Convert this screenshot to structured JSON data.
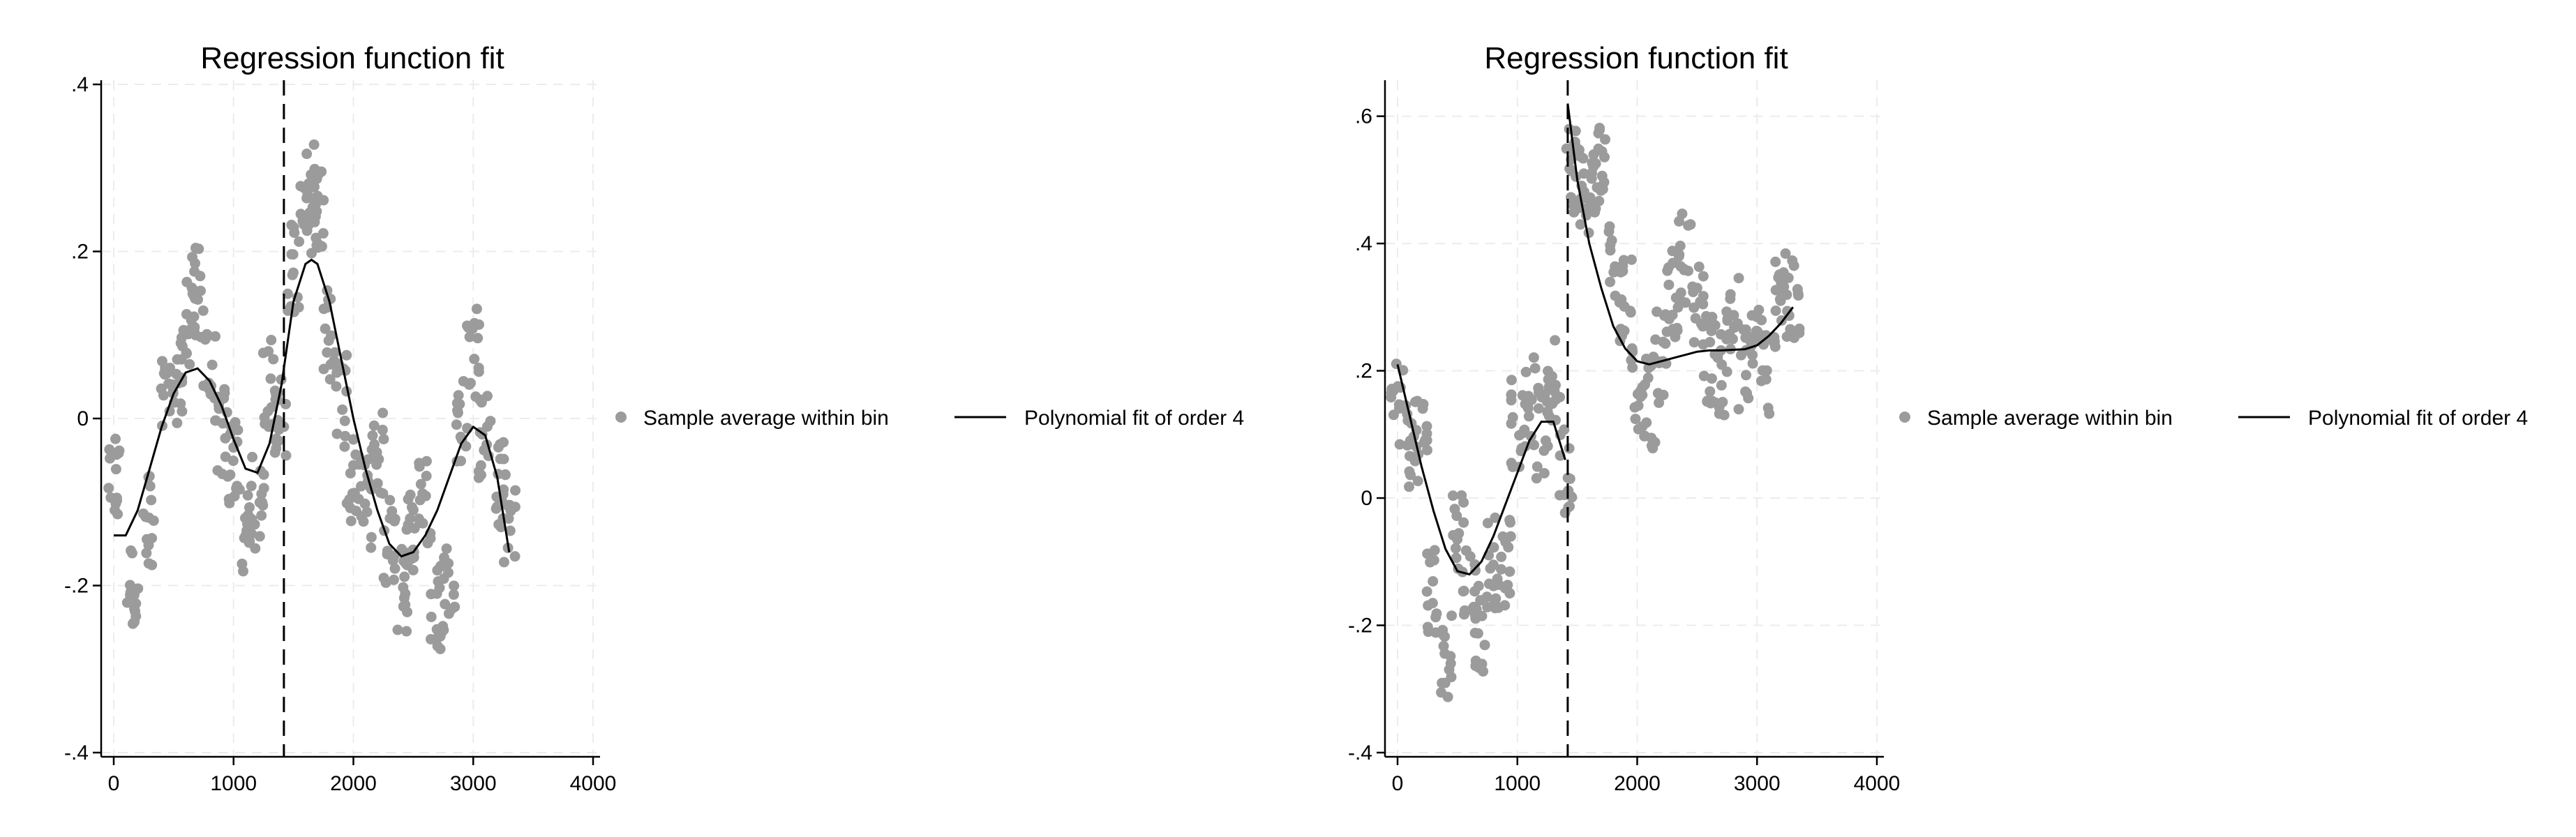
{
  "colors": {
    "points": "#9b9b9b",
    "line": "#000000",
    "grid": "#ececec",
    "background": "#ffffff"
  },
  "chart_data": [
    {
      "type": "scatter",
      "title": "Regression function fit",
      "xlabel": "",
      "ylabel": "",
      "xlim": [
        0,
        4000
      ],
      "ylim": [
        -0.4,
        0.4
      ],
      "x_ticks": [
        0,
        1000,
        2000,
        3000,
        4000
      ],
      "x_tick_labels": [
        "0",
        "1000",
        "2000",
        "3000",
        "4000"
      ],
      "y_ticks": [
        -0.4,
        -0.2,
        0,
        0.2,
        0.4
      ],
      "y_tick_labels": [
        "-.4",
        "-.2",
        "0",
        ".2",
        ".4"
      ],
      "grid": true,
      "cutoff_x": 1420,
      "legend": {
        "placement": "right",
        "entries": [
          "Sample average within bin",
          "Polynomial fit of order 4"
        ]
      },
      "series": [
        {
          "name": "Sample average within bin",
          "kind": "points",
          "x": [
            0,
            150,
            300,
            450,
            550,
            650,
            700,
            800,
            900,
            1000,
            1100,
            1200,
            1300,
            1400,
            1500,
            1600,
            1650,
            1700,
            1800,
            1900,
            2000,
            2100,
            2200,
            2300,
            2400,
            2500,
            2600,
            2700,
            2800,
            2900,
            3000,
            3100,
            3200,
            3300
          ],
          "y": [
            -0.08,
            -0.2,
            -0.12,
            0.02,
            0.05,
            0.12,
            0.15,
            0.05,
            -0.02,
            -0.05,
            -0.14,
            -0.1,
            0.04,
            0.0,
            0.18,
            0.24,
            0.28,
            0.26,
            0.1,
            0.02,
            -0.08,
            -0.1,
            -0.04,
            -0.15,
            -0.2,
            -0.13,
            -0.1,
            -0.22,
            -0.2,
            0.0,
            0.08,
            -0.02,
            -0.08,
            -0.12
          ]
        },
        {
          "name": "Polynomial fit of order 4",
          "kind": "line",
          "segments": [
            {
              "x": [
                0,
                100,
                200,
                300,
                400,
                500,
                600,
                700,
                800,
                900,
                1000,
                1100,
                1200,
                1300,
                1400
              ],
              "y": [
                -0.14,
                -0.14,
                -0.11,
                -0.06,
                -0.01,
                0.03,
                0.055,
                0.06,
                0.045,
                0.015,
                -0.025,
                -0.06,
                -0.065,
                -0.03,
                0.04
              ]
            },
            {
              "x": [
                1400,
                1500,
                1600,
                1650,
                1700,
                1800,
                1900,
                2000,
                2100,
                2200,
                2300,
                2400,
                2500,
                2600,
                2700,
                2800,
                2900,
                3000,
                3100,
                3200,
                3300
              ],
              "y": [
                0.04,
                0.14,
                0.185,
                0.19,
                0.185,
                0.14,
                0.07,
                0.0,
                -0.06,
                -0.11,
                -0.15,
                -0.165,
                -0.16,
                -0.14,
                -0.11,
                -0.07,
                -0.03,
                -0.01,
                -0.02,
                -0.07,
                -0.16
              ]
            }
          ]
        }
      ]
    },
    {
      "type": "scatter",
      "title": "Regression function fit",
      "xlabel": "",
      "ylabel": "",
      "xlim": [
        0,
        4000
      ],
      "ylim": [
        -0.4,
        0.65
      ],
      "x_ticks": [
        0,
        1000,
        2000,
        3000,
        4000
      ],
      "x_tick_labels": [
        "0",
        "1000",
        "2000",
        "3000",
        "4000"
      ],
      "y_ticks": [
        -0.4,
        -0.2,
        0,
        0.2,
        0.4,
        0.6
      ],
      "y_tick_labels": [
        "-.4",
        "-.2",
        "0",
        ".2",
        ".4",
        ".6"
      ],
      "grid": true,
      "cutoff_x": 1420,
      "legend": {
        "placement": "right",
        "entries": [
          "Sample average within bin",
          "Polynomial fit of order 4"
        ]
      },
      "series": [
        {
          "name": "Sample average within bin",
          "kind": "points",
          "x": [
            0,
            100,
            200,
            300,
            400,
            500,
            600,
            700,
            800,
            900,
            1000,
            1100,
            1200,
            1300,
            1400,
            1450,
            1500,
            1600,
            1700,
            1800,
            1900,
            2000,
            2100,
            2200,
            2300,
            2400,
            2500,
            2600,
            2700,
            2800,
            2900,
            3000,
            3100,
            3200,
            3300
          ],
          "y": [
            0.15,
            0.08,
            0.1,
            -0.15,
            -0.25,
            -0.05,
            -0.15,
            -0.2,
            -0.1,
            -0.1,
            0.12,
            0.15,
            0.1,
            0.18,
            0.05,
            0.52,
            0.5,
            0.48,
            0.52,
            0.38,
            0.32,
            0.18,
            0.15,
            0.22,
            0.32,
            0.38,
            0.3,
            0.22,
            0.2,
            0.28,
            0.2,
            0.25,
            0.2,
            0.35,
            0.3
          ]
        },
        {
          "name": "Polynomial fit of order 4",
          "kind": "line",
          "segments": [
            {
              "x": [
                0,
                100,
                200,
                300,
                400,
                500,
                600,
                700,
                800,
                900,
                1000,
                1100,
                1200,
                1300,
                1400
              ],
              "y": [
                0.21,
                0.13,
                0.05,
                -0.02,
                -0.08,
                -0.115,
                -0.12,
                -0.1,
                -0.06,
                -0.01,
                0.04,
                0.09,
                0.12,
                0.12,
                0.06
              ]
            },
            {
              "x": [
                1420,
                1500,
                1600,
                1700,
                1800,
                1900,
                2000,
                2100,
                2200,
                2300,
                2400,
                2500,
                2600,
                2700,
                2800,
                2900,
                3000,
                3100,
                3200,
                3300
              ],
              "y": [
                0.62,
                0.5,
                0.4,
                0.33,
                0.27,
                0.235,
                0.215,
                0.21,
                0.215,
                0.22,
                0.225,
                0.23,
                0.232,
                0.232,
                0.233,
                0.234,
                0.24,
                0.255,
                0.275,
                0.3
              ]
            }
          ]
        }
      ]
    }
  ]
}
